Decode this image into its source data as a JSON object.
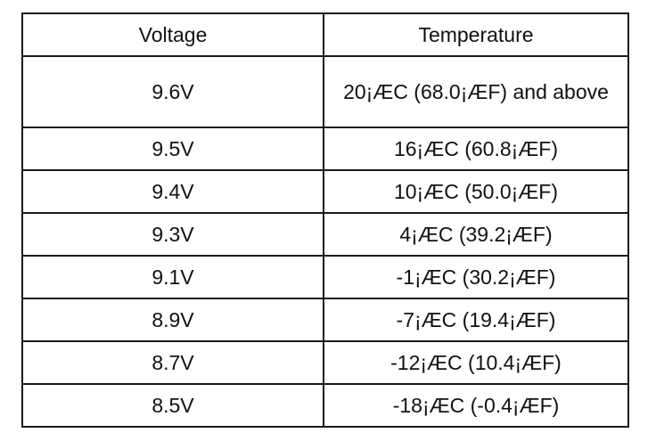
{
  "table": {
    "headers": {
      "voltage": "Voltage",
      "temperature": "Temperature"
    },
    "rows": [
      {
        "voltage": "9.6V",
        "temperature": "20¡ÆC (68.0¡ÆF) and above"
      },
      {
        "voltage": "9.5V",
        "temperature": "16¡ÆC (60.8¡ÆF)"
      },
      {
        "voltage": "9.4V",
        "temperature": "10¡ÆC (50.0¡ÆF)"
      },
      {
        "voltage": "9.3V",
        "temperature": "4¡ÆC (39.2¡ÆF)"
      },
      {
        "voltage": "9.1V",
        "temperature": "-1¡ÆC (30.2¡ÆF)"
      },
      {
        "voltage": "8.9V",
        "temperature": "-7¡ÆC (19.4¡ÆF)"
      },
      {
        "voltage": "8.7V",
        "temperature": "-12¡ÆC (10.4¡ÆF)"
      },
      {
        "voltage": "8.5V",
        "temperature": "-18¡ÆC (-0.4¡ÆF)"
      }
    ]
  }
}
